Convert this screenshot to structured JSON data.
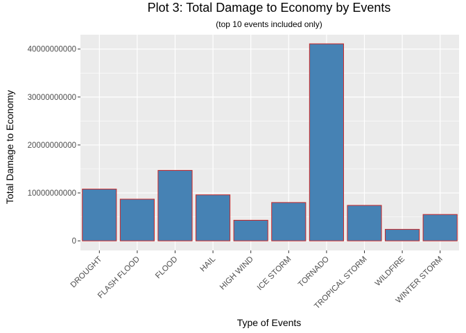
{
  "chart_data": {
    "type": "bar",
    "title": "Plot 3: Total Damage to Economy by Events",
    "subtitle": "(top 10 events included only)",
    "xlabel": "Type of Events",
    "ylabel": "Total Damage to Economy",
    "categories": [
      "DROUGHT",
      "FLASH FLOOD",
      "FLOOD",
      "HAIL",
      "HIGH WIND",
      "ICE STORM",
      "TORNADO",
      "TROPICAL STORM",
      "WILDFIRE",
      "WINTER STORM"
    ],
    "values": [
      10800000000,
      8700000000,
      14700000000,
      9600000000,
      4300000000,
      8000000000,
      41100000000,
      7400000000,
      2400000000,
      5500000000
    ],
    "ylim": [
      -2000000000,
      43000000000
    ],
    "y_ticks": [
      0,
      10000000000,
      20000000000,
      30000000000,
      40000000000
    ],
    "y_tick_labels": [
      "0",
      "10000000000",
      "20000000000",
      "30000000000",
      "40000000000"
    ],
    "grid": true,
    "legend": "none",
    "colors": {
      "panel_background": "#ebebeb",
      "grid_major": "#ffffff",
      "bar_fill": "#4682b4",
      "bar_outline": "#cd2626"
    }
  }
}
